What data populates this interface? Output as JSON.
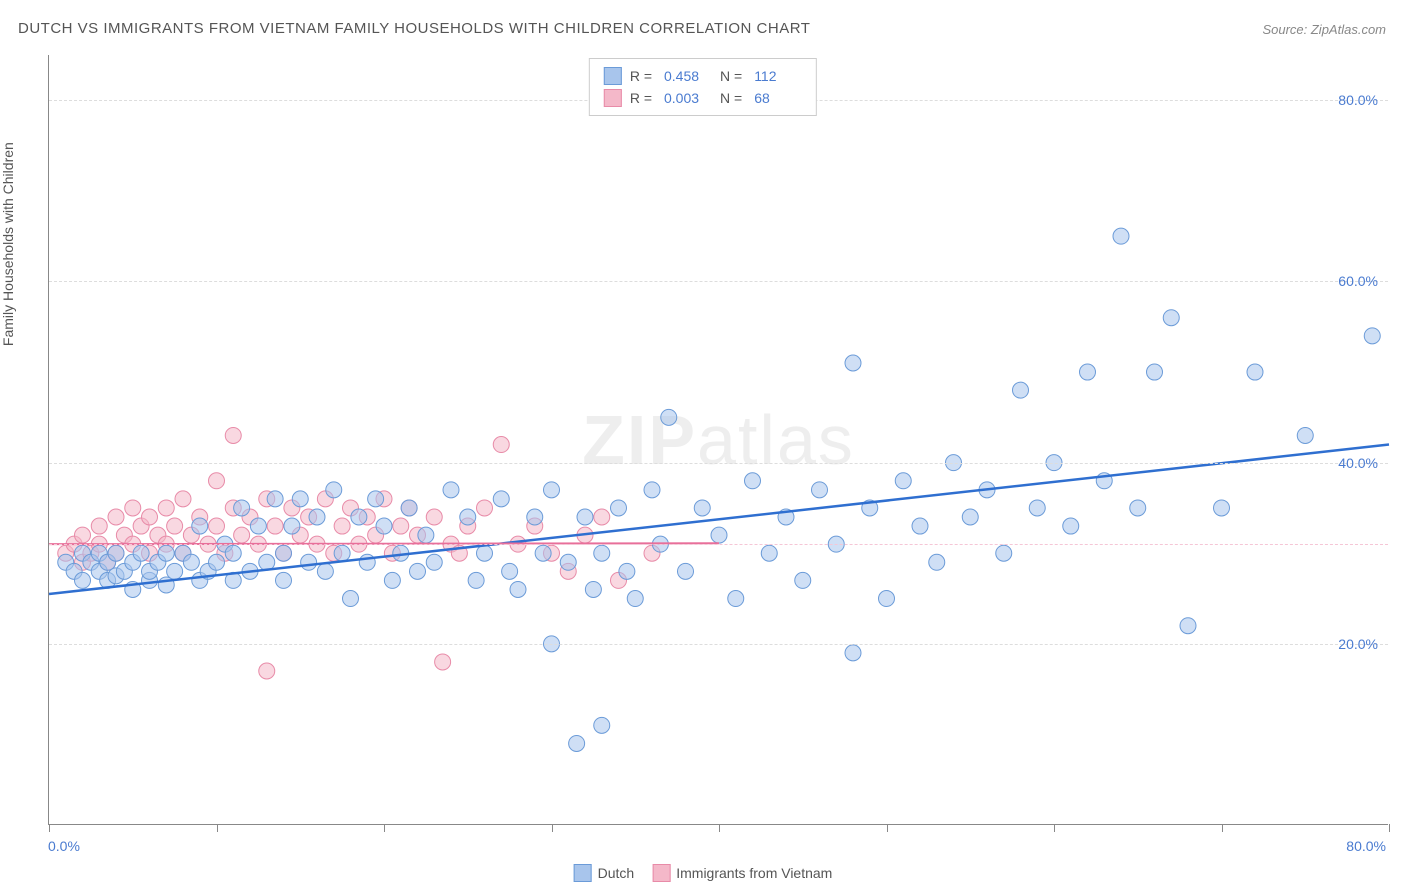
{
  "title": "DUTCH VS IMMIGRANTS FROM VIETNAM FAMILY HOUSEHOLDS WITH CHILDREN CORRELATION CHART",
  "source": "Source: ZipAtlas.com",
  "ylabel": "Family Households with Children",
  "watermark_bold": "ZIP",
  "watermark_rest": "atlas",
  "chart": {
    "type": "scatter",
    "xlim": [
      0,
      80
    ],
    "ylim": [
      0,
      85
    ],
    "ytick_values": [
      20,
      40,
      60,
      80
    ],
    "ytick_labels": [
      "20.0%",
      "40.0%",
      "60.0%",
      "80.0%"
    ],
    "xtick_positions": [
      0,
      10,
      20,
      30,
      40,
      50,
      60,
      70,
      80
    ],
    "xlabel_start": "0.0%",
    "xlabel_end": "80.0%",
    "pink_ref_y": 31,
    "grid_color": "#dddddd",
    "background_color": "#ffffff",
    "marker_radius": 8,
    "marker_opacity": 0.55,
    "series": [
      {
        "name": "Dutch",
        "color_fill": "#a8c5ec",
        "color_stroke": "#6b9bd8",
        "trend_color": "#2f6fd0",
        "trend_width": 2.5,
        "trend": {
          "x1": 0,
          "y1": 25.5,
          "x2": 80,
          "y2": 42
        },
        "r_value": "0.458",
        "n_value": "112",
        "points": [
          [
            1,
            29
          ],
          [
            1.5,
            28
          ],
          [
            2,
            27
          ],
          [
            2,
            30
          ],
          [
            2.5,
            29
          ],
          [
            3,
            28
          ],
          [
            3,
            30
          ],
          [
            3.5,
            27
          ],
          [
            3.5,
            29
          ],
          [
            4,
            27.5
          ],
          [
            4,
            30
          ],
          [
            4.5,
            28
          ],
          [
            5,
            26
          ],
          [
            5,
            29
          ],
          [
            5.5,
            30
          ],
          [
            6,
            27
          ],
          [
            6,
            28
          ],
          [
            6.5,
            29
          ],
          [
            7,
            26.5
          ],
          [
            7,
            30
          ],
          [
            7.5,
            28
          ],
          [
            8,
            30
          ],
          [
            8.5,
            29
          ],
          [
            9,
            27
          ],
          [
            9,
            33
          ],
          [
            9.5,
            28
          ],
          [
            10,
            29
          ],
          [
            10.5,
            31
          ],
          [
            11,
            30
          ],
          [
            11,
            27
          ],
          [
            11.5,
            35
          ],
          [
            12,
            28
          ],
          [
            12.5,
            33
          ],
          [
            13,
            29
          ],
          [
            13.5,
            36
          ],
          [
            14,
            30
          ],
          [
            14,
            27
          ],
          [
            14.5,
            33
          ],
          [
            15,
            36
          ],
          [
            15.5,
            29
          ],
          [
            16,
            34
          ],
          [
            16.5,
            28
          ],
          [
            17,
            37
          ],
          [
            17.5,
            30
          ],
          [
            18,
            25
          ],
          [
            18.5,
            34
          ],
          [
            19,
            29
          ],
          [
            19.5,
            36
          ],
          [
            20,
            33
          ],
          [
            20.5,
            27
          ],
          [
            21,
            30
          ],
          [
            21.5,
            35
          ],
          [
            22,
            28
          ],
          [
            22.5,
            32
          ],
          [
            23,
            29
          ],
          [
            24,
            37
          ],
          [
            25,
            34
          ],
          [
            25.5,
            27
          ],
          [
            26,
            30
          ],
          [
            27,
            36
          ],
          [
            27.5,
            28
          ],
          [
            28,
            26
          ],
          [
            29,
            34
          ],
          [
            29.5,
            30
          ],
          [
            30,
            20
          ],
          [
            30,
            37
          ],
          [
            31,
            29
          ],
          [
            31.5,
            9
          ],
          [
            32,
            34
          ],
          [
            32.5,
            26
          ],
          [
            33,
            30
          ],
          [
            33,
            11
          ],
          [
            34,
            35
          ],
          [
            34.5,
            28
          ],
          [
            35,
            25
          ],
          [
            36,
            37
          ],
          [
            36.5,
            31
          ],
          [
            37,
            45
          ],
          [
            38,
            28
          ],
          [
            39,
            35
          ],
          [
            40,
            32
          ],
          [
            41,
            25
          ],
          [
            42,
            38
          ],
          [
            43,
            30
          ],
          [
            44,
            34
          ],
          [
            45,
            27
          ],
          [
            46,
            37
          ],
          [
            47,
            31
          ],
          [
            48,
            19
          ],
          [
            48,
            51
          ],
          [
            49,
            35
          ],
          [
            50,
            25
          ],
          [
            51,
            38
          ],
          [
            52,
            33
          ],
          [
            53,
            29
          ],
          [
            54,
            40
          ],
          [
            55,
            34
          ],
          [
            56,
            37
          ],
          [
            57,
            30
          ],
          [
            58,
            48
          ],
          [
            59,
            35
          ],
          [
            60,
            40
          ],
          [
            61,
            33
          ],
          [
            62,
            50
          ],
          [
            63,
            38
          ],
          [
            64,
            65
          ],
          [
            65,
            35
          ],
          [
            66,
            50
          ],
          [
            67,
            56
          ],
          [
            68,
            22
          ],
          [
            70,
            35
          ],
          [
            72,
            50
          ],
          [
            75,
            43
          ],
          [
            79,
            54
          ]
        ]
      },
      {
        "name": "Immigrants from Vietnam",
        "color_fill": "#f4b8c9",
        "color_stroke": "#e88ba8",
        "trend_color": "#e86f9a",
        "trend_width": 2,
        "trend": {
          "x1": 0,
          "y1": 31,
          "x2": 40,
          "y2": 31.1
        },
        "r_value": "0.003",
        "n_value": "68",
        "points": [
          [
            1,
            30
          ],
          [
            1.5,
            31
          ],
          [
            2,
            29
          ],
          [
            2,
            32
          ],
          [
            2.5,
            30
          ],
          [
            3,
            33
          ],
          [
            3,
            31
          ],
          [
            3.5,
            29
          ],
          [
            4,
            34
          ],
          [
            4,
            30
          ],
          [
            4.5,
            32
          ],
          [
            5,
            35
          ],
          [
            5,
            31
          ],
          [
            5.5,
            33
          ],
          [
            6,
            30
          ],
          [
            6,
            34
          ],
          [
            6.5,
            32
          ],
          [
            7,
            35
          ],
          [
            7,
            31
          ],
          [
            7.5,
            33
          ],
          [
            8,
            30
          ],
          [
            8,
            36
          ],
          [
            8.5,
            32
          ],
          [
            9,
            34
          ],
          [
            9.5,
            31
          ],
          [
            10,
            38
          ],
          [
            10,
            33
          ],
          [
            10.5,
            30
          ],
          [
            11,
            35
          ],
          [
            11,
            43
          ],
          [
            11.5,
            32
          ],
          [
            12,
            34
          ],
          [
            12.5,
            31
          ],
          [
            13,
            36
          ],
          [
            13,
            17
          ],
          [
            13.5,
            33
          ],
          [
            14,
            30
          ],
          [
            14.5,
            35
          ],
          [
            15,
            32
          ],
          [
            15.5,
            34
          ],
          [
            16,
            31
          ],
          [
            16.5,
            36
          ],
          [
            17,
            30
          ],
          [
            17.5,
            33
          ],
          [
            18,
            35
          ],
          [
            18.5,
            31
          ],
          [
            19,
            34
          ],
          [
            19.5,
            32
          ],
          [
            20,
            36
          ],
          [
            20.5,
            30
          ],
          [
            21,
            33
          ],
          [
            21.5,
            35
          ],
          [
            22,
            32
          ],
          [
            23,
            34
          ],
          [
            23.5,
            18
          ],
          [
            24,
            31
          ],
          [
            24.5,
            30
          ],
          [
            25,
            33
          ],
          [
            26,
            35
          ],
          [
            27,
            42
          ],
          [
            28,
            31
          ],
          [
            29,
            33
          ],
          [
            30,
            30
          ],
          [
            31,
            28
          ],
          [
            32,
            32
          ],
          [
            33,
            34
          ],
          [
            34,
            27
          ],
          [
            36,
            30
          ]
        ]
      }
    ]
  },
  "legend_top": {
    "r_label": "R =",
    "n_label": "N ="
  },
  "legend_bottom": {
    "items": [
      "Dutch",
      "Immigrants from Vietnam"
    ]
  }
}
